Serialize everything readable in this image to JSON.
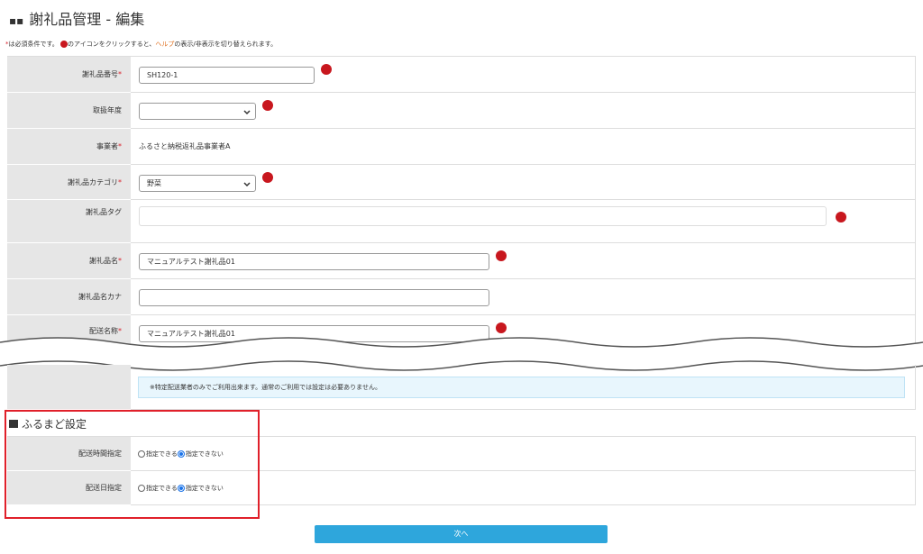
{
  "header": {
    "title": "謝礼品管理 - 編集"
  },
  "notice": {
    "mark": "*",
    "text1": "は必須条件です。",
    "text2": "のアイコンをクリックすると、",
    "link": "ヘルプ",
    "text3": "の表示/非表示を切り替えられます。"
  },
  "required_mark": "*",
  "form": {
    "rows": [
      {
        "label": "謝礼品番号",
        "required": true,
        "kind": "input",
        "value": "SH120-1",
        "help": true
      },
      {
        "label": "取扱年度",
        "required": false,
        "kind": "select",
        "value": "",
        "help": true
      },
      {
        "label": "事業者",
        "required": true,
        "kind": "text",
        "value": "ふるさと納税返礼品事業者A",
        "help": false
      },
      {
        "label": "謝礼品カテゴリ",
        "required": true,
        "kind": "select",
        "value": "野菜",
        "help": true
      },
      {
        "label": "謝礼品タグ",
        "required": false,
        "kind": "input",
        "value": "",
        "help": true
      },
      {
        "label": "謝礼品名",
        "required": true,
        "kind": "input",
        "value": "マニュアルテスト謝礼品01",
        "help": true
      },
      {
        "label": "謝礼品名カナ",
        "required": false,
        "kind": "input",
        "value": "",
        "help": false
      },
      {
        "label": "配送名称",
        "required": true,
        "kind": "input",
        "value": "マニュアルテスト謝礼品01",
        "help": true
      }
    ],
    "note": "※特定配送業者のみでご利用出来ます。通常のご利用では設定は必要ありません。"
  },
  "section": {
    "title": "ふるまど設定",
    "rows": [
      {
        "label": "配送時間指定",
        "options": [
          "指定できる",
          "指定できない"
        ],
        "checked": 1
      },
      {
        "label": "配送日指定",
        "options": [
          "指定できる",
          "指定できない"
        ],
        "checked": 1
      }
    ]
  },
  "button": {
    "label": "次へ"
  }
}
